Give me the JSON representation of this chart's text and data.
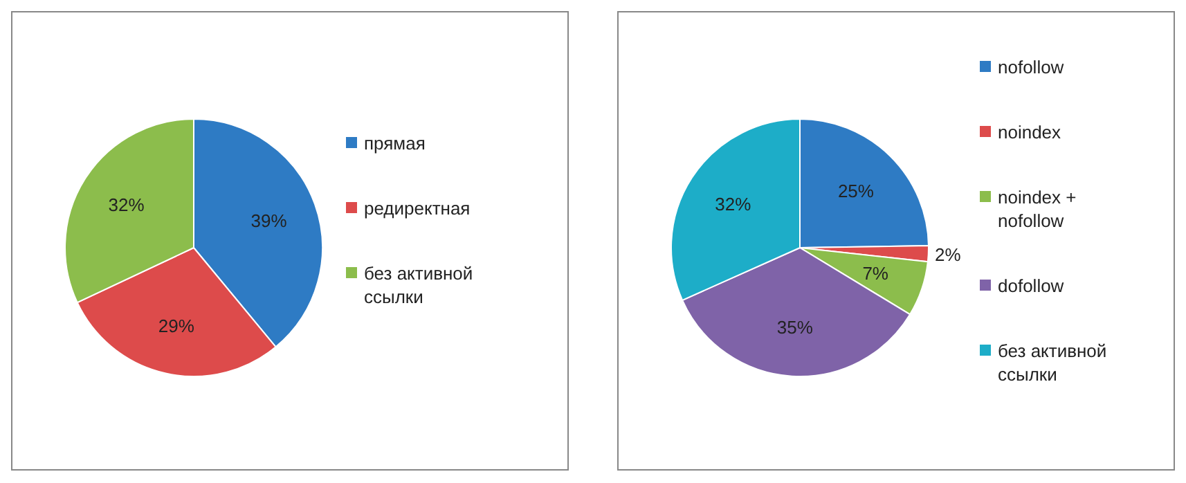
{
  "chart_data": [
    {
      "type": "pie",
      "categories": [
        "прямая",
        "редиректная",
        "без активной ссылки"
      ],
      "values": [
        39,
        29,
        32
      ],
      "colors": [
        "#2e7bc4",
        "#dd4b4b",
        "#8cbd4c"
      ],
      "value_labels": [
        "39%",
        "29%",
        "32%"
      ],
      "legend": "right"
    },
    {
      "type": "pie",
      "categories": [
        "nofollow",
        "noindex",
        "noindex + nofollow",
        "dofollow",
        "без активной ссылки"
      ],
      "values": [
        25,
        2,
        7,
        35,
        32
      ],
      "colors": [
        "#2e7bc4",
        "#dd4b4b",
        "#8cbd4c",
        "#7f63a8",
        "#1dadc8"
      ],
      "value_labels": [
        "25%",
        "2%",
        "7%",
        "35%",
        "32%"
      ],
      "legend": "right"
    }
  ]
}
